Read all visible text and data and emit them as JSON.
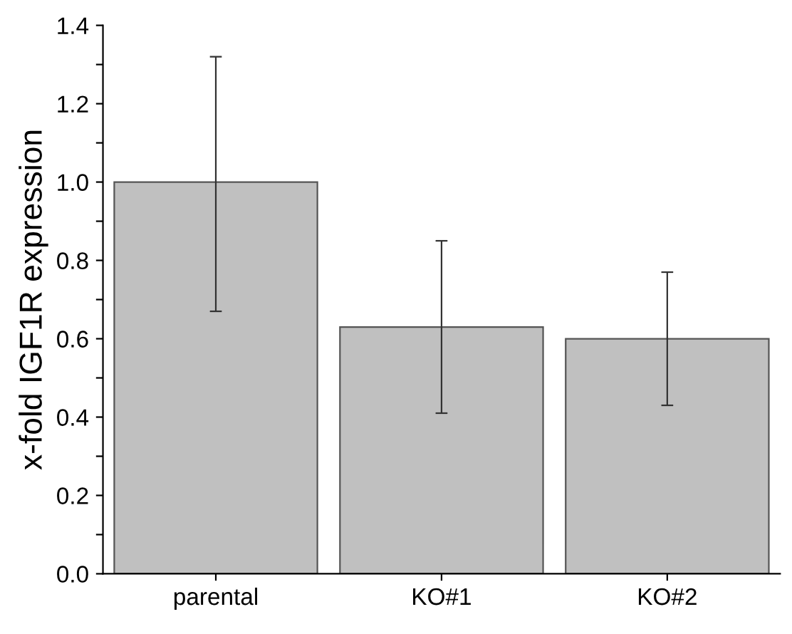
{
  "chart_data": {
    "type": "bar",
    "ylabel": "x-fold IGF1R expression",
    "categories": [
      "parental",
      "KO#1",
      "KO#2"
    ],
    "values": [
      1.0,
      0.63,
      0.6
    ],
    "errors": [
      [
        0.67,
        1.32
      ],
      [
        0.41,
        0.85
      ],
      [
        0.43,
        0.77
      ]
    ],
    "color": "#c0c0c0",
    "ylim": [
      0,
      1.4
    ],
    "yticks": [
      {
        "value": 0,
        "label": "0.0"
      },
      {
        "value": 0.1,
        "label": null
      },
      {
        "value": 0.2,
        "label": "0.2"
      },
      {
        "value": 0.3,
        "label": null
      },
      {
        "value": 0.4,
        "label": "0.4"
      },
      {
        "value": 0.5,
        "label": null
      },
      {
        "value": 0.6,
        "label": "0.6"
      },
      {
        "value": 0.7,
        "label": null
      },
      {
        "value": 0.8,
        "label": "0.8"
      },
      {
        "value": 0.9,
        "label": null
      },
      {
        "value": 1.0,
        "label": "1.0"
      },
      {
        "value": 1.1,
        "label": null
      },
      {
        "value": 1.2,
        "label": "1.2"
      },
      {
        "value": 1.3,
        "label": null
      },
      {
        "value": 1.4,
        "label": "1.4"
      }
    ],
    "grid": false,
    "legend": false
  }
}
